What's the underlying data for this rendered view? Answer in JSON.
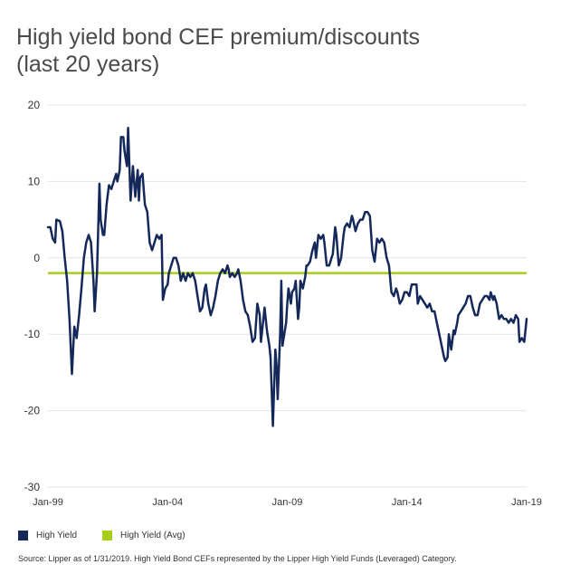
{
  "title_line1": "High yield bond CEF premium/discounts",
  "title_line2": "(last 20 years)",
  "source": "Source: Lipper as of 1/31/2019. High Yield Bond CEFs represented by the Lipper High Yield Funds (Leveraged) Category.",
  "colors": {
    "series": "#14285a",
    "avg": "#a8cf17",
    "grid": "#e4e4e4"
  },
  "chart_data": {
    "type": "line",
    "title": "High yield bond CEF premium/discounts (last 20 years)",
    "xlabel": "",
    "ylabel": "",
    "x_range": [
      1999.0,
      2019.0
    ],
    "ylim": [
      -30,
      20
    ],
    "y_ticks": [
      20,
      10,
      0,
      -10,
      -20,
      -30
    ],
    "x_ticks": [
      {
        "label": "Jan-99",
        "x": 1999.0
      },
      {
        "label": "Jan-04",
        "x": 2004.0
      },
      {
        "label": "Jan-09",
        "x": 2009.0
      },
      {
        "label": "Jan-14",
        "x": 2014.0
      },
      {
        "label": "Jan-19",
        "x": 2019.0
      }
    ],
    "grid": true,
    "legend_position": "bottom-left",
    "series": [
      {
        "name": "High Yield",
        "color": "#14285a",
        "points": [
          [
            1999.0,
            4.0
          ],
          [
            1999.1,
            4.0
          ],
          [
            1999.2,
            2.5
          ],
          [
            1999.3,
            2.0
          ],
          [
            1999.35,
            5.0
          ],
          [
            1999.5,
            4.8
          ],
          [
            1999.6,
            3.5
          ],
          [
            1999.7,
            0.0
          ],
          [
            1999.8,
            -3.0
          ],
          [
            1999.9,
            -8.0
          ],
          [
            2000.0,
            -15.2
          ],
          [
            2000.1,
            -9.0
          ],
          [
            2000.2,
            -10.5
          ],
          [
            2000.3,
            -7.5
          ],
          [
            2000.4,
            -4.0
          ],
          [
            2000.5,
            0.0
          ],
          [
            2000.6,
            2.0
          ],
          [
            2000.7,
            3.0
          ],
          [
            2000.8,
            2.0
          ],
          [
            2000.9,
            -3.0
          ],
          [
            2000.95,
            -7.0
          ],
          [
            2001.05,
            -2.0
          ],
          [
            2001.15,
            9.7
          ],
          [
            2001.2,
            5.0
          ],
          [
            2001.3,
            3.0
          ],
          [
            2001.35,
            3.0
          ],
          [
            2001.45,
            7.0
          ],
          [
            2001.55,
            9.5
          ],
          [
            2001.65,
            9.0
          ],
          [
            2001.75,
            10.0
          ],
          [
            2001.85,
            11.0
          ],
          [
            2001.9,
            10.0
          ],
          [
            2002.0,
            11.5
          ],
          [
            2002.05,
            15.8
          ],
          [
            2002.15,
            15.8
          ],
          [
            2002.2,
            14.0
          ],
          [
            2002.3,
            12.0
          ],
          [
            2002.35,
            17.0
          ],
          [
            2002.45,
            7.5
          ],
          [
            2002.55,
            12.0
          ],
          [
            2002.6,
            10.0
          ],
          [
            2002.65,
            8.0
          ],
          [
            2002.75,
            11.5
          ],
          [
            2002.8,
            7.5
          ],
          [
            2002.85,
            10.5
          ],
          [
            2002.95,
            11.0
          ],
          [
            2003.05,
            7.0
          ],
          [
            2003.15,
            6.0
          ],
          [
            2003.25,
            2.0
          ],
          [
            2003.35,
            1.0
          ],
          [
            2003.45,
            2.0
          ],
          [
            2003.55,
            3.0
          ],
          [
            2003.65,
            2.5
          ],
          [
            2003.75,
            3.0
          ],
          [
            2003.8,
            -5.5
          ],
          [
            2003.9,
            -4.0
          ],
          [
            2004.0,
            -3.5
          ],
          [
            2004.05,
            -2.0
          ],
          [
            2004.15,
            -1.0
          ],
          [
            2004.25,
            0.0
          ],
          [
            2004.35,
            0.0
          ],
          [
            2004.45,
            -1.0
          ],
          [
            2004.55,
            -3.0
          ],
          [
            2004.65,
            -2.0
          ],
          [
            2004.75,
            -3.0
          ],
          [
            2004.85,
            -2.0
          ],
          [
            2004.95,
            -2.5
          ],
          [
            2005.05,
            -2.0
          ],
          [
            2005.15,
            -3.0
          ],
          [
            2005.25,
            -5.0
          ],
          [
            2005.35,
            -7.0
          ],
          [
            2005.45,
            -6.5
          ],
          [
            2005.55,
            -4.0
          ],
          [
            2005.6,
            -3.5
          ],
          [
            2005.7,
            -6.0
          ],
          [
            2005.8,
            -7.5
          ],
          [
            2005.9,
            -6.5
          ],
          [
            2006.0,
            -5.0
          ],
          [
            2006.1,
            -3.0
          ],
          [
            2006.2,
            -2.0
          ],
          [
            2006.3,
            -1.5
          ],
          [
            2006.4,
            -2.0
          ],
          [
            2006.5,
            -1.0
          ],
          [
            2006.55,
            -1.5
          ],
          [
            2006.6,
            -2.5
          ],
          [
            2006.7,
            -2.0
          ],
          [
            2006.8,
            -2.5
          ],
          [
            2006.9,
            -2.0
          ],
          [
            2006.95,
            -1.5
          ],
          [
            2007.05,
            -3.0
          ],
          [
            2007.15,
            -5.5
          ],
          [
            2007.25,
            -7.0
          ],
          [
            2007.35,
            -7.5
          ],
          [
            2007.45,
            -9.0
          ],
          [
            2007.55,
            -11.0
          ],
          [
            2007.65,
            -10.5
          ],
          [
            2007.75,
            -6.0
          ],
          [
            2007.85,
            -7.5
          ],
          [
            2007.9,
            -11.0
          ],
          [
            2008.0,
            -8.0
          ],
          [
            2008.05,
            -6.5
          ],
          [
            2008.15,
            -9.5
          ],
          [
            2008.25,
            -11.5
          ],
          [
            2008.3,
            -13.0
          ],
          [
            2008.4,
            -22.0
          ],
          [
            2008.5,
            -12.0
          ],
          [
            2008.55,
            -14.0
          ],
          [
            2008.6,
            -18.5
          ],
          [
            2008.7,
            -10.0
          ],
          [
            2008.75,
            -3.0
          ],
          [
            2008.8,
            -11.5
          ],
          [
            2008.85,
            -10.5
          ],
          [
            2008.95,
            -8.5
          ],
          [
            2009.0,
            -6.0
          ],
          [
            2009.05,
            -4.0
          ],
          [
            2009.15,
            -6.0
          ],
          [
            2009.2,
            -4.5
          ],
          [
            2009.3,
            -4.0
          ],
          [
            2009.35,
            -3.0
          ],
          [
            2009.45,
            -8.0
          ],
          [
            2009.5,
            -6.5
          ],
          [
            2009.55,
            -3.0
          ],
          [
            2009.65,
            -4.0
          ],
          [
            2009.75,
            -2.5
          ],
          [
            2009.8,
            -1.0
          ],
          [
            2009.85,
            -1.0
          ],
          [
            2009.95,
            -0.5
          ],
          [
            2010.05,
            1.0
          ],
          [
            2010.15,
            2.0
          ],
          [
            2010.2,
            0.0
          ],
          [
            2010.3,
            3.0
          ],
          [
            2010.4,
            2.5
          ],
          [
            2010.5,
            3.0
          ],
          [
            2010.55,
            2.0
          ],
          [
            2010.65,
            -1.0
          ],
          [
            2010.75,
            -1.0
          ],
          [
            2010.85,
            0.0
          ],
          [
            2010.9,
            0.5
          ],
          [
            2011.0,
            4.0
          ],
          [
            2011.05,
            3.0
          ],
          [
            2011.15,
            -1.0
          ],
          [
            2011.25,
            0.0
          ],
          [
            2011.35,
            3.0
          ],
          [
            2011.4,
            4.0
          ],
          [
            2011.5,
            4.5
          ],
          [
            2011.6,
            4.0
          ],
          [
            2011.7,
            5.5
          ],
          [
            2011.75,
            5.0
          ],
          [
            2011.85,
            3.5
          ],
          [
            2011.95,
            4.5
          ],
          [
            2012.05,
            5.0
          ],
          [
            2012.15,
            5.0
          ],
          [
            2012.25,
            6.0
          ],
          [
            2012.35,
            6.0
          ],
          [
            2012.45,
            5.5
          ],
          [
            2012.55,
            1.0
          ],
          [
            2012.65,
            -0.5
          ],
          [
            2012.75,
            2.5
          ],
          [
            2012.85,
            2.0
          ],
          [
            2012.95,
            2.5
          ],
          [
            2013.05,
            2.0
          ],
          [
            2013.15,
            0.0
          ],
          [
            2013.25,
            -1.0
          ],
          [
            2013.35,
            -4.5
          ],
          [
            2013.45,
            -5.0
          ],
          [
            2013.55,
            -4.0
          ],
          [
            2013.6,
            -4.5
          ],
          [
            2013.7,
            -6.0
          ],
          [
            2013.8,
            -5.5
          ],
          [
            2013.9,
            -4.5
          ],
          [
            2014.0,
            -4.5
          ],
          [
            2014.1,
            -5.0
          ],
          [
            2014.2,
            -3.5
          ],
          [
            2014.3,
            -3.5
          ],
          [
            2014.4,
            -3.5
          ],
          [
            2014.45,
            -6.0
          ],
          [
            2014.55,
            -5.0
          ],
          [
            2014.65,
            -5.5
          ],
          [
            2014.75,
            -6.0
          ],
          [
            2014.85,
            -6.5
          ],
          [
            2014.95,
            -6.0
          ],
          [
            2015.05,
            -7.0
          ],
          [
            2015.15,
            -7.0
          ],
          [
            2015.25,
            -8.5
          ],
          [
            2015.35,
            -10.0
          ],
          [
            2015.45,
            -11.5
          ],
          [
            2015.55,
            -13.0
          ],
          [
            2015.6,
            -13.5
          ],
          [
            2015.7,
            -13.0
          ],
          [
            2015.75,
            -10.0
          ],
          [
            2015.85,
            -12.0
          ],
          [
            2015.95,
            -9.5
          ],
          [
            2016.0,
            -10.0
          ],
          [
            2016.1,
            -8.5
          ],
          [
            2016.15,
            -7.5
          ],
          [
            2016.25,
            -7.0
          ],
          [
            2016.35,
            -6.5
          ],
          [
            2016.45,
            -6.0
          ],
          [
            2016.55,
            -5.0
          ],
          [
            2016.65,
            -5.0
          ],
          [
            2016.75,
            -6.5
          ],
          [
            2016.85,
            -7.5
          ],
          [
            2016.95,
            -7.5
          ],
          [
            2017.05,
            -6.0
          ],
          [
            2017.15,
            -5.5
          ],
          [
            2017.25,
            -5.0
          ],
          [
            2017.35,
            -5.0
          ],
          [
            2017.45,
            -5.5
          ],
          [
            2017.5,
            -4.5
          ],
          [
            2017.6,
            -5.5
          ],
          [
            2017.65,
            -5.0
          ],
          [
            2017.75,
            -6.0
          ],
          [
            2017.85,
            -8.0
          ],
          [
            2017.95,
            -7.5
          ],
          [
            2018.05,
            -8.0
          ],
          [
            2018.15,
            -8.0
          ],
          [
            2018.25,
            -8.5
          ],
          [
            2018.35,
            -8.0
          ],
          [
            2018.45,
            -8.5
          ],
          [
            2018.55,
            -7.5
          ],
          [
            2018.65,
            -8.0
          ],
          [
            2018.7,
            -11.0
          ],
          [
            2018.8,
            -10.5
          ],
          [
            2018.9,
            -11.0
          ],
          [
            2018.95,
            -9.5
          ],
          [
            2019.0,
            -8.0
          ]
        ]
      },
      {
        "name": "High Yield (Avg)",
        "color": "#a8cf17",
        "constant": -2.0
      }
    ]
  }
}
